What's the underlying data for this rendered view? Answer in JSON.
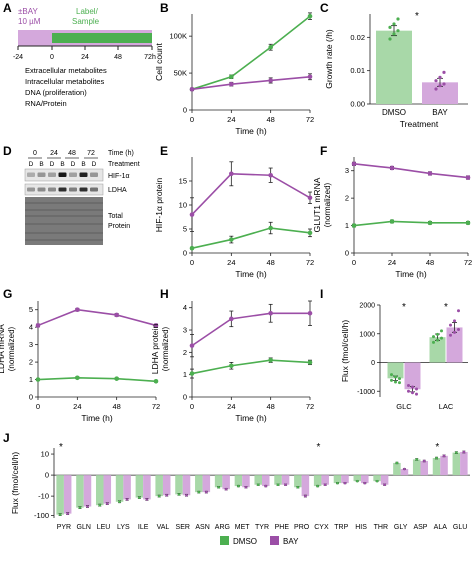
{
  "colors": {
    "dmso": "#4caf50",
    "bay": "#9b4ea6",
    "dmso_fill": "#a8d8a8",
    "bay_fill": "#d4a8dc",
    "axis": "#222222",
    "gel": "#808080"
  },
  "panel_letters": [
    "A",
    "B",
    "C",
    "D",
    "E",
    "F",
    "G",
    "H",
    "I",
    "J"
  ],
  "timeline": {
    "treatment_label_1": "±BAY",
    "treatment_label_2": "10 µM",
    "label_sample_1": "Label/",
    "label_sample_2": "Sample",
    "ticks": [
      "-24",
      "0",
      "24",
      "48",
      "72h"
    ],
    "readouts": [
      "Extracellular metabolites",
      "Intracellular metabolites",
      "DNA (proliferation)",
      "RNA/Protein"
    ]
  },
  "blot": {
    "time_label": "Time (h)",
    "treatment_label": "Treatment",
    "times": [
      "0",
      "24",
      "48",
      "72"
    ],
    "lanes": [
      "D",
      "B",
      "D",
      "B",
      "D",
      "B",
      "D"
    ],
    "bands": [
      "HIF-1α",
      "LDHA"
    ],
    "total_label_1": "Total",
    "total_label_2": "Protein",
    "hif_intensity": [
      0.25,
      0.35,
      0.3,
      0.9,
      0.3,
      0.85,
      0.35
    ],
    "ldha_intensity": [
      0.35,
      0.4,
      0.4,
      0.8,
      0.45,
      0.8,
      0.5
    ]
  },
  "chart_data": [
    {
      "id": "B",
      "type": "line",
      "ylabel": "Cell count",
      "xlabel": "Time (h)",
      "x": [
        0,
        24,
        48,
        72
      ],
      "xlim": [
        0,
        72
      ],
      "ylim": [
        0,
        130000
      ],
      "y_ticks": [
        0,
        50000,
        100000
      ],
      "y_tick_labels": [
        "0",
        "50K",
        "100K"
      ],
      "series": [
        {
          "key": "dmso",
          "values": [
            28000,
            45000,
            85000,
            127000
          ],
          "err": [
            1500,
            2500,
            4000,
            4500
          ]
        },
        {
          "key": "bay",
          "values": [
            28000,
            35000,
            40000,
            45000
          ],
          "err": [
            1500,
            2500,
            3500,
            4000
          ]
        }
      ]
    },
    {
      "id": "C",
      "type": "bar",
      "ylabel": "Growth rate (/h)",
      "xlabel": "Treatment",
      "categories": [
        "DMSO",
        "BAY"
      ],
      "ylim": [
        0,
        0.027
      ],
      "y_ticks": [
        0,
        0.01,
        0.02
      ],
      "y_tick_labels": [
        "0.00",
        "0.01",
        "0.02"
      ],
      "values": [
        0.022,
        0.0065
      ],
      "err": [
        0.0015,
        0.0012
      ],
      "points": [
        [
          0.0195,
          0.021,
          0.022,
          0.023,
          0.024,
          0.0255
        ],
        [
          0.0045,
          0.0055,
          0.006,
          0.007,
          0.008,
          0.0095
        ]
      ],
      "annotation": "*"
    },
    {
      "id": "E",
      "type": "line",
      "ylabel": "HIF-1α protein",
      "xlabel": "Time (h)",
      "x": [
        0,
        24,
        48,
        72
      ],
      "xlim": [
        0,
        72
      ],
      "ylim": [
        0,
        20
      ],
      "y_ticks": [
        0,
        5,
        10,
        15
      ],
      "y_tick_labels": [
        "0",
        "5",
        "10",
        "15"
      ],
      "series": [
        {
          "key": "dmso",
          "values": [
            1,
            2.8,
            5.2,
            4.2
          ],
          "err": [
            0.2,
            0.7,
            1.2,
            0.8
          ]
        },
        {
          "key": "bay",
          "values": [
            8,
            16.5,
            16.2,
            11.5
          ],
          "err": [
            3.5,
            2.5,
            1.5,
            1.2
          ]
        }
      ]
    },
    {
      "id": "F",
      "type": "line",
      "ylabel_1": "GLUT1 mRNA",
      "ylabel_2": "(normalized)",
      "xlabel": "Time (h)",
      "x": [
        0,
        24,
        48,
        72
      ],
      "xlim": [
        0,
        72
      ],
      "ylim": [
        0,
        3.5
      ],
      "y_ticks": [
        0,
        1,
        2,
        3
      ],
      "y_tick_labels": [
        "0",
        "1",
        "2",
        "3"
      ],
      "series": [
        {
          "key": "dmso",
          "values": [
            1,
            1.15,
            1.1,
            1.1
          ],
          "err": [
            0.05,
            0.05,
            0.05,
            0.05
          ]
        },
        {
          "key": "bay",
          "values": [
            3.25,
            3.1,
            2.9,
            2.75
          ],
          "err": [
            0.06,
            0.06,
            0.06,
            0.06
          ]
        }
      ]
    },
    {
      "id": "G",
      "type": "line",
      "ylabel_1": "LDHA mRNA",
      "ylabel_2": "(normalized)",
      "xlabel": "Time (h)",
      "x": [
        0,
        24,
        48,
        72
      ],
      "xlim": [
        0,
        72
      ],
      "ylim": [
        0,
        5.5
      ],
      "y_ticks": [
        0,
        1,
        2,
        3,
        4,
        5
      ],
      "y_tick_labels": [
        "0",
        "1",
        "2",
        "3",
        "4",
        "5"
      ],
      "series": [
        {
          "key": "dmso",
          "values": [
            1,
            1.1,
            1.05,
            0.9
          ],
          "err": [
            0.05,
            0.05,
            0.05,
            0.05
          ]
        },
        {
          "key": "bay",
          "values": [
            4.1,
            5,
            4.7,
            4.1
          ],
          "err": [
            0.08,
            0.08,
            0.08,
            0.08
          ]
        }
      ]
    },
    {
      "id": "H",
      "type": "line",
      "ylabel_1": "LDHA protein",
      "ylabel_2": "(normalized)",
      "xlabel": "Time (h)",
      "x": [
        0,
        24,
        48,
        72
      ],
      "xlim": [
        0,
        72
      ],
      "ylim": [
        0,
        4.3
      ],
      "y_ticks": [
        0,
        1,
        2,
        3,
        4
      ],
      "y_tick_labels": [
        "0",
        "1",
        "2",
        "3",
        "4"
      ],
      "series": [
        {
          "key": "dmso",
          "values": [
            1.05,
            1.4,
            1.65,
            1.55
          ],
          "err": [
            0.2,
            0.15,
            0.1,
            0.1
          ]
        },
        {
          "key": "bay",
          "values": [
            2.3,
            3.5,
            3.75,
            3.75
          ],
          "err": [
            0.5,
            0.35,
            0.4,
            0.55
          ]
        }
      ]
    },
    {
      "id": "I",
      "type": "bar",
      "ylabel": "Flux (fmol/cell/h)",
      "categories": [
        "GLC",
        "LAC"
      ],
      "ylim": [
        -1200,
        2000
      ],
      "y_ticks": [
        -1000,
        0,
        1000,
        2000
      ],
      "y_tick_labels": [
        "-1000",
        "0",
        "1000",
        "2000"
      ],
      "series": [
        {
          "key": "dmso",
          "values": [
            -550,
            880
          ],
          "err": [
            80,
            110
          ],
          "points": [
            [
              -420,
              -500,
              -560,
              -620,
              -680,
              -700
            ],
            [
              700,
              780,
              850,
              900,
              980,
              1100
            ]
          ]
        },
        {
          "key": "bay",
          "values": [
            -930,
            1220
          ],
          "err": [
            90,
            170
          ],
          "points": [
            [
              -800,
              -850,
              -920,
              -1000,
              -1050,
              -1100
            ],
            [
              950,
              1050,
              1150,
              1300,
              1450,
              1800
            ]
          ]
        }
      ],
      "annotations": [
        "*",
        "*"
      ]
    },
    {
      "id": "J",
      "type": "bar",
      "scale": "symlog",
      "ylabel": "Flux (fmol/cell/h)",
      "categories": [
        "PYR",
        "GLN",
        "LEU",
        "LYS",
        "ILE",
        "VAL",
        "SER",
        "ASN",
        "ARG",
        "MET",
        "TYR",
        "PHE",
        "PRO",
        "CYX",
        "TRP",
        "HIS",
        "THR",
        "GLY",
        "ASP",
        "ALA",
        "GLU"
      ],
      "y_ticks": [
        -100,
        -10,
        0,
        10
      ],
      "y_tick_labels": [
        "-100",
        "-10",
        "0",
        "10"
      ],
      "series": [
        {
          "key": "dmso",
          "values": [
            -90,
            -40,
            -30,
            -20,
            -12,
            -10,
            -8,
            -6,
            -3,
            -2.5,
            -2,
            -2,
            -3,
            -2.5,
            -1.5,
            -1,
            -1,
            3,
            5,
            6,
            12
          ]
        },
        {
          "key": "bay",
          "values": [
            -80,
            -35,
            -25,
            -15,
            -15,
            -9,
            -9,
            -6,
            -4,
            -3,
            -2.5,
            -2,
            -10,
            -2,
            -1.5,
            -1.5,
            -2,
            1,
            4,
            8,
            13
          ]
        }
      ],
      "star_categories": [
        "PYR",
        "CYX",
        "ALA"
      ],
      "legend": [
        {
          "key": "dmso",
          "label": "DMSO"
        },
        {
          "key": "bay",
          "label": "BAY"
        }
      ]
    }
  ]
}
